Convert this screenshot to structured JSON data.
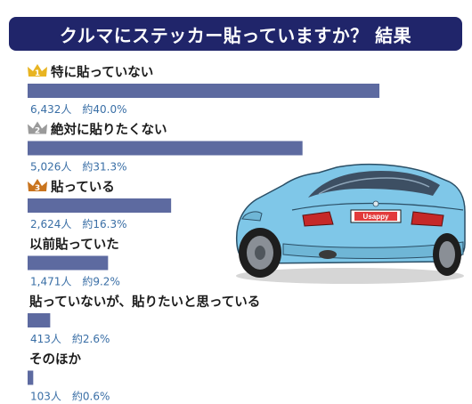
{
  "title": "クルマにステッカー貼っていますか？ 結果",
  "car": {
    "plate": "Usappy",
    "body_color": "#7fc7e8"
  },
  "colors": {
    "title_bg": "#20256a",
    "bar": "#5d6aa0",
    "value_text": "#3a6fa6",
    "gold": "#e8b422",
    "silver": "#9a9a9a",
    "bronze": "#c9741e"
  },
  "chart_data": {
    "type": "bar",
    "orientation": "horizontal",
    "title": "クルマにステッカー貼っていますか？ 結果",
    "categories": [
      "特に貼っていない",
      "絶対に貼りたくない",
      "貼っている",
      "以前貼っていた",
      "貼っていないが、貼りたいと思っている",
      "そのほか"
    ],
    "values": [
      6432,
      5026,
      2624,
      1471,
      413,
      103
    ],
    "percents": [
      40.0,
      31.3,
      16.3,
      9.2,
      2.6,
      0.6
    ],
    "value_labels": [
      "6,432人　約40.0%",
      "5,026人　約31.3%",
      "2,624人　約16.3%",
      "1,471人　約9.2%",
      "413人　約2.6%",
      "103人　約0.6%"
    ],
    "ranks": [
      "1",
      "2",
      "3",
      "",
      "",
      ""
    ],
    "xlim": [
      0,
      6920
    ]
  }
}
